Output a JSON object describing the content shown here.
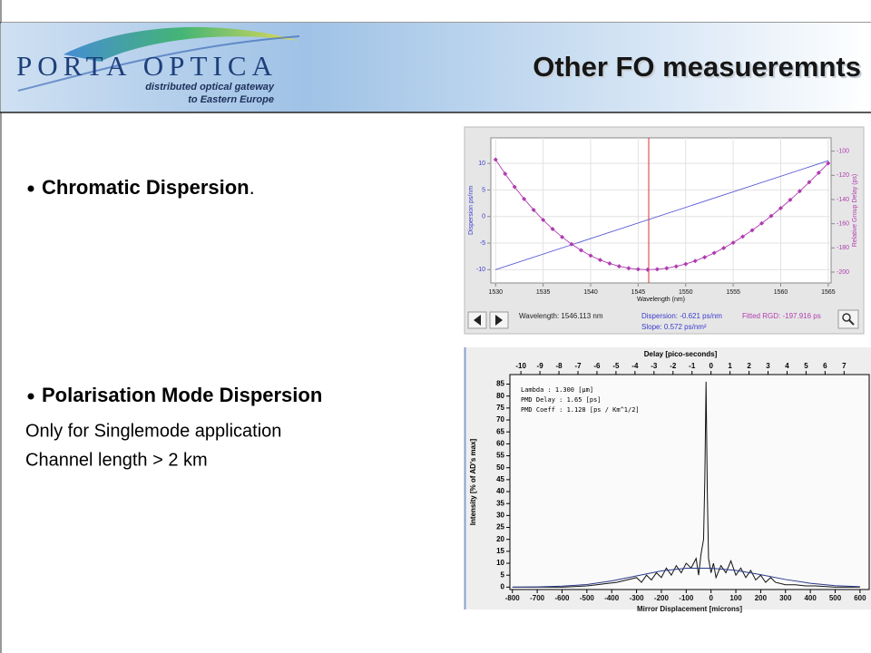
{
  "header": {
    "logo": "PORTA OPTICA",
    "tagline": [
      "distributed optical gateway",
      "to Eastern Europe"
    ],
    "title": "Other FO measueremnts"
  },
  "bullets": [
    {
      "text": "Chromatic Dispersion",
      "tail": "."
    },
    {
      "text": "Polarisation Mode Dispersion",
      "lines": [
        "Only for Singlemode application",
        "Channel length > 2 km"
      ]
    }
  ],
  "chart_data": [
    {
      "type": "line",
      "xlim": [
        1529.5,
        1565.3
      ],
      "xticks": [
        1530,
        1535,
        1540,
        1545,
        1550,
        1555,
        1560,
        1565
      ],
      "xlabel": "Wavelength (nm)",
      "ylim": [
        -12.5,
        14.8
      ],
      "yticks": [
        -10,
        -5,
        0,
        5,
        10
      ],
      "ylabel": "Dispersion ps/nm",
      "y2lim": [
        -209,
        -89
      ],
      "y2ticks": [
        -200,
        -180,
        -160,
        -140,
        -120,
        -100
      ],
      "y2label": "Relative Group Delay (ps)",
      "grid": true,
      "cursor_x": 1546.113,
      "cursor_color": "#e03030",
      "series": [
        {
          "color": "#5a5ad8",
          "x": [
            1530,
            1565
          ],
          "values": [
            -10,
            10.5
          ]
        },
        {
          "color": "#b03cb0",
          "axis": "y2",
          "marker": "diamond",
          "x": [
            1530,
            1531,
            1532,
            1533,
            1534,
            1535,
            1536,
            1537,
            1538,
            1539,
            1540,
            1541,
            1542,
            1543,
            1544,
            1545,
            1546,
            1547,
            1548,
            1549,
            1550,
            1551,
            1552,
            1553,
            1554,
            1555,
            1556,
            1557,
            1558,
            1559,
            1560,
            1561,
            1562,
            1563,
            1564,
            1565
          ],
          "values": [
            -107,
            -118.7,
            -129.6,
            -139.5,
            -148.6,
            -156.9,
            -164.4,
            -171,
            -176.9,
            -182,
            -186.4,
            -190,
            -192.9,
            -195.2,
            -196.8,
            -197.7,
            -198,
            -197.7,
            -196.8,
            -195.3,
            -193.3,
            -190.8,
            -187.7,
            -184.2,
            -180.1,
            -175.7,
            -170.7,
            -165.4,
            -159.7,
            -153.6,
            -147.1,
            -140.3,
            -133.1,
            -125.7,
            -117.9,
            -110
          ]
        }
      ],
      "readout": [
        {
          "text": "Wavelength: 1546.113 nm",
          "color": "#222222"
        },
        {
          "text": "Dispersion:  -0.621 ps/nm",
          "color": "#3a3ad0"
        },
        {
          "text": "Slope:         0.572 ps/nm²",
          "color": "#3a3ad0"
        },
        {
          "text": "Fitted RGD: -197.916 ps",
          "color": "#b03cb0"
        }
      ]
    },
    {
      "type": "line",
      "xlim": [
        -810,
        637
      ],
      "xticks": [
        -800,
        -700,
        -600,
        -500,
        -400,
        -300,
        -200,
        -100,
        0,
        100,
        200,
        300,
        400,
        500,
        600
      ],
      "xlabel": "Mirror Displacement [microns]",
      "x2lim": [
        -10.58,
        8.32
      ],
      "x2ticks": [
        -10,
        -9,
        -8,
        -7,
        -6,
        -5,
        -4,
        -3,
        -2,
        -1,
        0,
        1,
        2,
        3,
        4,
        5,
        6,
        7
      ],
      "x2label": "Delay [pico-seconds]",
      "ylim": [
        -1,
        89
      ],
      "yticks": [
        0,
        5,
        10,
        15,
        20,
        25,
        30,
        35,
        40,
        45,
        50,
        55,
        60,
        65,
        70,
        75,
        80,
        85
      ],
      "ylabel": "Intensity [% of AD's max]",
      "annotations": [
        "Lambda :      1.300  [µm]",
        "PMD Delay :  1.65   [ps]",
        "PMD Coeff :  1.128 [ps / Km^1/2]"
      ],
      "series": [
        {
          "color": "#111111",
          "x": [
            -800,
            -600,
            -500,
            -460,
            -420,
            -380,
            -340,
            -300,
            -280,
            -260,
            -240,
            -220,
            -200,
            -180,
            -160,
            -140,
            -120,
            -100,
            -80,
            -60,
            -50,
            -40,
            -30,
            -25,
            -20,
            -15,
            -10,
            0,
            10,
            20,
            40,
            60,
            80,
            100,
            120,
            140,
            160,
            180,
            200,
            220,
            240,
            260,
            300,
            340,
            380,
            420,
            500,
            600
          ],
          "values": [
            0,
            0,
            0.5,
            1,
            1.5,
            2,
            3,
            4,
            2,
            5,
            3,
            6,
            4,
            8,
            5,
            9,
            6,
            10,
            8,
            12,
            5,
            14,
            20,
            45,
            86,
            40,
            12,
            6,
            10,
            4,
            9,
            6,
            11,
            5,
            8,
            4,
            7,
            3,
            5,
            2,
            4,
            2,
            1,
            1,
            0.5,
            0.5,
            0,
            0
          ]
        },
        {
          "color": "#2a3a8a",
          "x": [
            -800,
            -700,
            -600,
            -500,
            -400,
            -300,
            -200,
            -100,
            0,
            100,
            200,
            300,
            400,
            500,
            600
          ],
          "values": [
            0,
            0.1,
            0.4,
            1.1,
            2.6,
            4.7,
            6.8,
            7.9,
            7.9,
            7,
            5.2,
            3.2,
            1.6,
            0.6,
            0.2
          ]
        }
      ]
    }
  ]
}
